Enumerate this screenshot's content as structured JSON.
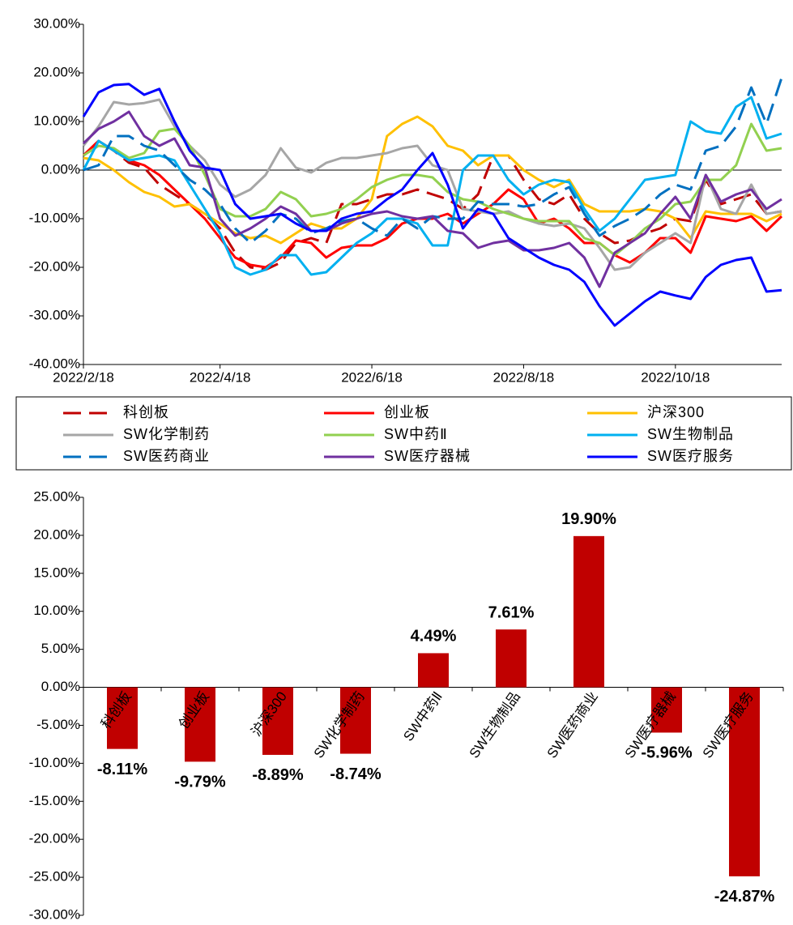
{
  "chart_data": [
    {
      "type": "line",
      "categories": [
        "2022/2/18",
        null,
        null,
        null,
        null,
        null,
        null,
        null,
        null,
        "2022/4/18",
        null,
        null,
        null,
        null,
        null,
        null,
        null,
        null,
        null,
        "2022/6/18",
        null,
        null,
        null,
        null,
        null,
        null,
        null,
        null,
        null,
        "2022/8/18",
        null,
        null,
        null,
        null,
        null,
        null,
        null,
        null,
        null,
        "2022/10/18",
        null,
        null,
        null,
        null,
        null,
        null,
        null
      ],
      "ylim": [
        -40,
        30
      ],
      "yticks": [
        {
          "value": 30,
          "label": "30.00%"
        },
        {
          "value": 20,
          "label": "20.00%"
        },
        {
          "value": 10,
          "label": "10.00%"
        },
        {
          "value": 0,
          "label": "0.00%"
        },
        {
          "value": -10,
          "label": "-10.00%"
        },
        {
          "value": -20,
          "label": "-20.00%"
        },
        {
          "value": -30,
          "label": "-30.00%"
        },
        {
          "value": -40,
          "label": "-40.00%"
        }
      ],
      "series": [
        {
          "name": "科创板",
          "color": "#c00000",
          "dash": true,
          "values": [
            3,
            6,
            4,
            1.5,
            0.5,
            -3,
            -5,
            -7,
            -9,
            -12,
            -17,
            -20,
            -20.5,
            -19,
            -15,
            -14,
            -15,
            -7,
            -7,
            -6,
            -5,
            -5,
            -4,
            -5,
            -6,
            -8,
            -5,
            3,
            3,
            -2,
            -6,
            -7,
            -5,
            -10,
            -13,
            -15,
            -14.5,
            -13,
            -12,
            -10,
            -10.5,
            -2,
            -7,
            -6,
            -5,
            -9,
            -8.5
          ]
        },
        {
          "name": "创业板",
          "color": "#ff0000",
          "dash": false,
          "values": [
            3,
            6,
            4,
            2,
            1,
            -1,
            -4,
            -7,
            -10,
            -14,
            -18,
            -19.5,
            -20,
            -18,
            -14.5,
            -15,
            -18,
            -16,
            -15.5,
            -15.5,
            -14,
            -11,
            -10,
            -10,
            -9,
            -11,
            -9,
            -7,
            -4,
            -6,
            -11,
            -10,
            -12,
            -15,
            -15,
            -17.5,
            -19,
            -17,
            -14,
            -14,
            -17,
            -9.5,
            -10,
            -10.5,
            -9.5,
            -12.5,
            -9.5
          ]
        },
        {
          "name": "沪深300",
          "color": "#ffc000",
          "dash": false,
          "values": [
            2.5,
            2,
            0,
            -2.5,
            -4.5,
            -5.5,
            -7.5,
            -7,
            -9,
            -11,
            -13,
            -14,
            -13.5,
            -15,
            -13,
            -11,
            -12,
            -12,
            -10,
            -6,
            7,
            9.5,
            11,
            9,
            5,
            4,
            1,
            3,
            3,
            0,
            -2,
            -3.5,
            -2,
            -7,
            -8.5,
            -8.5,
            -8.5,
            -8,
            -8.5,
            -10,
            -14,
            -8.5,
            -9,
            -9,
            -9,
            -10.5,
            -9
          ]
        },
        {
          "name": "SW化学制药",
          "color": "#a6a6a6",
          "dash": false,
          "values": [
            5,
            9,
            14,
            13.5,
            13.8,
            14.5,
            9,
            5,
            2,
            -3,
            -5.5,
            -4,
            -1,
            4.5,
            0.5,
            -0.5,
            1.5,
            2.5,
            2.5,
            3,
            3.5,
            4.5,
            5,
            1,
            0,
            -8,
            -8.5,
            -9,
            -8.5,
            -10,
            -11,
            -11.5,
            -11,
            -12,
            -16,
            -20.5,
            -20,
            -17,
            -15,
            -13,
            -15,
            -1,
            -8,
            -9,
            -3,
            -9,
            -8.5
          ]
        },
        {
          "name": "SW中药Ⅱ",
          "color": "#92d050",
          "dash": false,
          "values": [
            3,
            5,
            4.5,
            2.5,
            3.5,
            8,
            8.5,
            5,
            -1,
            -8,
            -9.5,
            -9.5,
            -8,
            -4.5,
            -6,
            -9.5,
            -9,
            -8,
            -6,
            -3.5,
            -2,
            -1,
            -1,
            -1.5,
            -4.5,
            -6,
            -6.5,
            -8,
            -9,
            -10,
            -10.5,
            -10.5,
            -10.5,
            -14,
            -15,
            -17.5,
            -15,
            -12,
            -10,
            -7,
            -6.5,
            -2,
            -2,
            1,
            9.5,
            4,
            4.5
          ]
        },
        {
          "name": "SW生物制品",
          "color": "#00b0f0",
          "dash": false,
          "values": [
            0,
            6,
            4,
            2,
            2.5,
            3,
            2,
            -3,
            -8,
            -13,
            -20,
            -21.5,
            -20.5,
            -17.5,
            -17.5,
            -21.5,
            -21,
            -18,
            -15,
            -13,
            -10,
            -10,
            -11,
            -15.5,
            -15.5,
            0,
            3,
            3,
            -2,
            -5,
            -3,
            -2,
            -2.5,
            -8,
            -12.5,
            -10,
            -6,
            -2,
            -1.5,
            -1,
            10,
            8,
            7.5,
            13,
            15,
            6.5,
            7.5
          ]
        },
        {
          "name": "SW医药商业",
          "color": "#0070c0",
          "dash": true,
          "values": [
            0,
            1,
            7,
            7,
            5,
            4,
            1,
            -2,
            -4,
            -7,
            -12,
            -15,
            -12.5,
            -9,
            -10,
            -13,
            -12,
            -10.5,
            -10,
            -12,
            -13.5,
            -10,
            -12,
            -9.5,
            -10,
            -10,
            -6.5,
            -7,
            -7,
            -7.5,
            -7,
            -5,
            -3.5,
            -9,
            -13.5,
            -11.5,
            -10,
            -8,
            -5,
            -3,
            -4,
            4,
            5,
            9,
            17,
            9.5,
            19
          ]
        },
        {
          "name": "SW医疗器械",
          "color": "#7030a0",
          "dash": false,
          "values": [
            5.5,
            8.5,
            10,
            12,
            7,
            5,
            6.5,
            1,
            0.5,
            -10,
            -13.5,
            -12,
            -10,
            -7.5,
            -9,
            -12.5,
            -12.5,
            -11,
            -10,
            -9,
            -8.5,
            -9.5,
            -10,
            -9.5,
            -12.5,
            -13,
            -16,
            -15,
            -14.5,
            -16.5,
            -16.5,
            -16,
            -15,
            -18,
            -24,
            -17,
            -15,
            -13,
            -9,
            -5.5,
            -10,
            -1,
            -6.5,
            -5,
            -4,
            -8,
            -6
          ]
        },
        {
          "name": "SW医疗服务",
          "color": "#0000ff",
          "dash": false,
          "values": [
            11,
            16,
            17.5,
            17.7,
            15.5,
            16.7,
            10,
            4,
            0.5,
            0,
            -7,
            -10,
            -9.5,
            -9,
            -11,
            -12.5,
            -12.5,
            -10,
            -9,
            -8.5,
            -6,
            -4,
            0,
            3.5,
            -3,
            -12,
            -8,
            -9,
            -14,
            -16,
            -18,
            -19.5,
            -20.5,
            -23,
            -28,
            -32,
            -29.5,
            -27,
            -25,
            -25.8,
            -26.5,
            -22,
            -19.5,
            -18.5,
            -18,
            -25,
            -24.7
          ]
        }
      ]
    },
    {
      "type": "bar",
      "categories": [
        "科创板",
        "创业板",
        "沪深300",
        "SW化学制药",
        "SW中药Ⅱ",
        "SW生物制品",
        "SW医药商业",
        "SW医疗器械",
        "SW医疗服务"
      ],
      "values": [
        -8.11,
        -9.79,
        -8.89,
        -8.74,
        4.49,
        7.61,
        19.9,
        -5.96,
        -24.87
      ],
      "value_labels": [
        "-8.11%",
        "-9.79%",
        "-8.89%",
        "-8.74%",
        "4.49%",
        "7.61%",
        "19.90%",
        "-5.96%",
        "-24.87%"
      ],
      "color": "#c00000",
      "ylim": [
        -30,
        25
      ],
      "yticks": [
        {
          "value": 25,
          "label": "25.00%"
        },
        {
          "value": 20,
          "label": "20.00%"
        },
        {
          "value": 15,
          "label": "15.00%"
        },
        {
          "value": 10,
          "label": "10.00%"
        },
        {
          "value": 5,
          "label": "5.00%"
        },
        {
          "value": 0,
          "label": "0.00%"
        },
        {
          "value": -5,
          "label": "-5.00%"
        },
        {
          "value": -10,
          "label": "-10.00%"
        },
        {
          "value": -15,
          "label": "-15.00%"
        },
        {
          "value": -20,
          "label": "-20.00%"
        },
        {
          "value": -25,
          "label": "-25.00%"
        },
        {
          "value": -30,
          "label": "-30.00%"
        }
      ]
    }
  ]
}
